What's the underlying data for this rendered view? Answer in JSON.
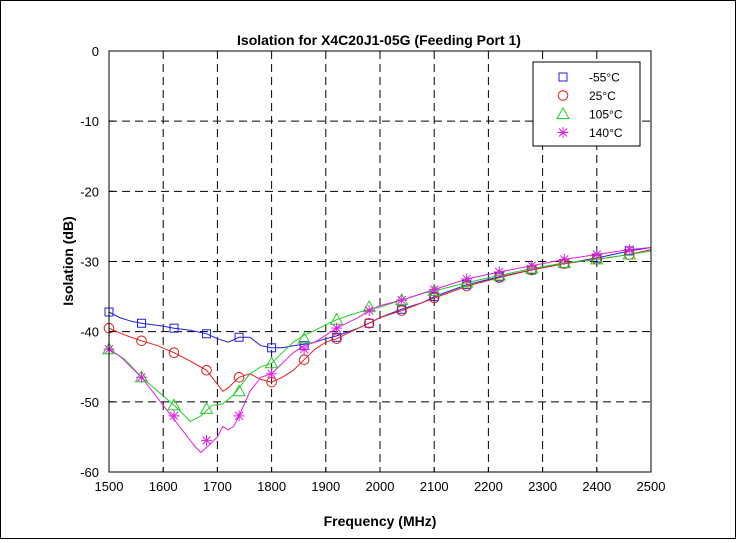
{
  "chart_data": {
    "type": "line",
    "title": "Isolation for X4C20J1-05G (Feeding Port 1)",
    "xlabel": "Frequency (MHz)",
    "ylabel": "Isolation (dB)",
    "xlim": [
      1500,
      2500
    ],
    "ylim": [
      -60,
      0
    ],
    "xticks": [
      1500,
      1600,
      1700,
      1800,
      1900,
      2000,
      2100,
      2200,
      2300,
      2400,
      2500
    ],
    "yticks": [
      0,
      -10,
      -20,
      -30,
      -40,
      -50,
      -60
    ],
    "grid": true,
    "legend_position": "top-right",
    "series": [
      {
        "name": "-55°C",
        "color": "#1f1fe0",
        "marker": "square",
        "line": [
          [
            1500,
            -37.2
          ],
          [
            1520,
            -38
          ],
          [
            1540,
            -38.5
          ],
          [
            1560,
            -38.8
          ],
          [
            1600,
            -39.2
          ],
          [
            1620,
            -39.5
          ],
          [
            1650,
            -39.8
          ],
          [
            1680,
            -40.3
          ],
          [
            1700,
            -41
          ],
          [
            1720,
            -41.5
          ],
          [
            1740,
            -40.8
          ],
          [
            1760,
            -40.8
          ],
          [
            1780,
            -42
          ],
          [
            1800,
            -42.3
          ],
          [
            1820,
            -42.3
          ],
          [
            1840,
            -42
          ],
          [
            1860,
            -41.8
          ],
          [
            1880,
            -41.5
          ],
          [
            1900,
            -41
          ],
          [
            1920,
            -40.6
          ],
          [
            1960,
            -39.5
          ],
          [
            1980,
            -38.8
          ],
          [
            2000,
            -38
          ],
          [
            2040,
            -36.8
          ],
          [
            2080,
            -35.8
          ],
          [
            2100,
            -35
          ],
          [
            2160,
            -33.3
          ],
          [
            2220,
            -32.2
          ],
          [
            2280,
            -31.2
          ],
          [
            2340,
            -30.3
          ],
          [
            2400,
            -29.5
          ],
          [
            2460,
            -28.5
          ],
          [
            2500,
            -28
          ]
        ],
        "markers": [
          [
            1500,
            -37.2
          ],
          [
            1560,
            -38.8
          ],
          [
            1620,
            -39.5
          ],
          [
            1680,
            -40.3
          ],
          [
            1740,
            -40.8
          ],
          [
            1800,
            -42.3
          ],
          [
            1860,
            -42
          ],
          [
            1920,
            -40.8
          ],
          [
            1980,
            -38.8
          ],
          [
            2040,
            -36.8
          ],
          [
            2100,
            -35
          ],
          [
            2160,
            -33.3
          ],
          [
            2220,
            -32.2
          ],
          [
            2280,
            -31.2
          ],
          [
            2340,
            -30.3
          ],
          [
            2400,
            -29.5
          ],
          [
            2460,
            -28.5
          ]
        ]
      },
      {
        "name": "25°C",
        "color": "#e0201f",
        "marker": "circle",
        "line": [
          [
            1500,
            -39.5
          ],
          [
            1530,
            -40.5
          ],
          [
            1560,
            -41.3
          ],
          [
            1590,
            -42
          ],
          [
            1620,
            -43
          ],
          [
            1650,
            -44.2
          ],
          [
            1680,
            -45.5
          ],
          [
            1700,
            -47.5
          ],
          [
            1710,
            -48.5
          ],
          [
            1720,
            -48
          ],
          [
            1740,
            -46.5
          ],
          [
            1760,
            -46
          ],
          [
            1780,
            -46.8
          ],
          [
            1800,
            -47.2
          ],
          [
            1820,
            -46.5
          ],
          [
            1840,
            -45.5
          ],
          [
            1860,
            -44
          ],
          [
            1880,
            -42.5
          ],
          [
            1900,
            -41.5
          ],
          [
            1920,
            -41
          ],
          [
            1960,
            -39.5
          ],
          [
            1980,
            -38.8
          ],
          [
            2000,
            -38
          ],
          [
            2040,
            -37
          ],
          [
            2080,
            -35.8
          ],
          [
            2100,
            -35.2
          ],
          [
            2160,
            -33.5
          ],
          [
            2220,
            -32.3
          ],
          [
            2280,
            -31.2
          ],
          [
            2340,
            -30.3
          ],
          [
            2400,
            -29.7
          ],
          [
            2460,
            -29
          ],
          [
            2500,
            -28.3
          ]
        ],
        "markers": [
          [
            1500,
            -39.5
          ],
          [
            1560,
            -41.3
          ],
          [
            1620,
            -43
          ],
          [
            1680,
            -45.5
          ],
          [
            1740,
            -46.5
          ],
          [
            1800,
            -47.2
          ],
          [
            1860,
            -44
          ],
          [
            1920,
            -41
          ],
          [
            1980,
            -38.8
          ],
          [
            2040,
            -37
          ],
          [
            2100,
            -35.2
          ],
          [
            2160,
            -33.5
          ],
          [
            2220,
            -32.3
          ],
          [
            2280,
            -31.2
          ],
          [
            2340,
            -30.3
          ],
          [
            2400,
            -29.7
          ],
          [
            2460,
            -29
          ]
        ]
      },
      {
        "name": "105°C",
        "color": "#22d022",
        "marker": "triangle",
        "line": [
          [
            1500,
            -42.5
          ],
          [
            1530,
            -44
          ],
          [
            1560,
            -46.5
          ],
          [
            1590,
            -48.5
          ],
          [
            1620,
            -50.5
          ],
          [
            1640,
            -52
          ],
          [
            1650,
            -52.8
          ],
          [
            1670,
            -52
          ],
          [
            1690,
            -50.5
          ],
          [
            1710,
            -50.3
          ],
          [
            1730,
            -49
          ],
          [
            1740,
            -48
          ],
          [
            1760,
            -46
          ],
          [
            1780,
            -45
          ],
          [
            1800,
            -44.5
          ],
          [
            1820,
            -43
          ],
          [
            1840,
            -41.5
          ],
          [
            1860,
            -40.5
          ],
          [
            1880,
            -39.8
          ],
          [
            1900,
            -39
          ],
          [
            1920,
            -38.3
          ],
          [
            1950,
            -37.5
          ],
          [
            1980,
            -36.8
          ],
          [
            2000,
            -36.5
          ],
          [
            2040,
            -35.5
          ],
          [
            2080,
            -34.5
          ],
          [
            2100,
            -34.2
          ],
          [
            2160,
            -33
          ],
          [
            2220,
            -32
          ],
          [
            2280,
            -31
          ],
          [
            2340,
            -30.2
          ],
          [
            2400,
            -29.7
          ],
          [
            2460,
            -29
          ],
          [
            2500,
            -28.5
          ]
        ],
        "markers": [
          [
            1500,
            -42.5
          ],
          [
            1560,
            -46.5
          ],
          [
            1620,
            -50.5
          ],
          [
            1680,
            -51
          ],
          [
            1740,
            -48.5
          ],
          [
            1800,
            -44.5
          ],
          [
            1860,
            -41
          ],
          [
            1920,
            -38.3
          ],
          [
            1980,
            -36.5
          ],
          [
            2040,
            -35.5
          ],
          [
            2100,
            -34.2
          ],
          [
            2160,
            -33
          ],
          [
            2220,
            -32
          ],
          [
            2280,
            -31
          ],
          [
            2340,
            -30.2
          ],
          [
            2400,
            -29.7
          ],
          [
            2460,
            -29
          ]
        ]
      },
      {
        "name": "140°C",
        "color": "#e020e0",
        "marker": "star",
        "line": [
          [
            1500,
            -42.5
          ],
          [
            1520,
            -43.5
          ],
          [
            1540,
            -45
          ],
          [
            1560,
            -46.5
          ],
          [
            1580,
            -48.5
          ],
          [
            1600,
            -50.5
          ],
          [
            1620,
            -52.5
          ],
          [
            1640,
            -54.5
          ],
          [
            1660,
            -56.5
          ],
          [
            1670,
            -57.2
          ],
          [
            1680,
            -56.5
          ],
          [
            1700,
            -55
          ],
          [
            1710,
            -53.5
          ],
          [
            1720,
            -54
          ],
          [
            1730,
            -53.5
          ],
          [
            1740,
            -52
          ],
          [
            1760,
            -48.5
          ],
          [
            1780,
            -46.5
          ],
          [
            1800,
            -46
          ],
          [
            1820,
            -44.5
          ],
          [
            1840,
            -43
          ],
          [
            1860,
            -42
          ],
          [
            1880,
            -41.5
          ],
          [
            1900,
            -40.5
          ],
          [
            1920,
            -39.5
          ],
          [
            1960,
            -38
          ],
          [
            1980,
            -37
          ],
          [
            2000,
            -36.3
          ],
          [
            2040,
            -35.5
          ],
          [
            2080,
            -34.5
          ],
          [
            2100,
            -34
          ],
          [
            2160,
            -32.5
          ],
          [
            2220,
            -31.5
          ],
          [
            2280,
            -30.6
          ],
          [
            2340,
            -29.7
          ],
          [
            2400,
            -29
          ],
          [
            2460,
            -28.3
          ],
          [
            2500,
            -28
          ]
        ],
        "markers": [
          [
            1500,
            -42.5
          ],
          [
            1560,
            -46.5
          ],
          [
            1620,
            -52
          ],
          [
            1680,
            -55.5
          ],
          [
            1740,
            -52
          ],
          [
            1800,
            -46
          ],
          [
            1860,
            -42.5
          ],
          [
            1920,
            -39.5
          ],
          [
            1980,
            -37
          ],
          [
            2040,
            -35.5
          ],
          [
            2100,
            -34
          ],
          [
            2160,
            -32.5
          ],
          [
            2220,
            -31.5
          ],
          [
            2280,
            -30.6
          ],
          [
            2340,
            -29.7
          ],
          [
            2400,
            -29
          ],
          [
            2460,
            -28.3
          ]
        ]
      }
    ]
  }
}
